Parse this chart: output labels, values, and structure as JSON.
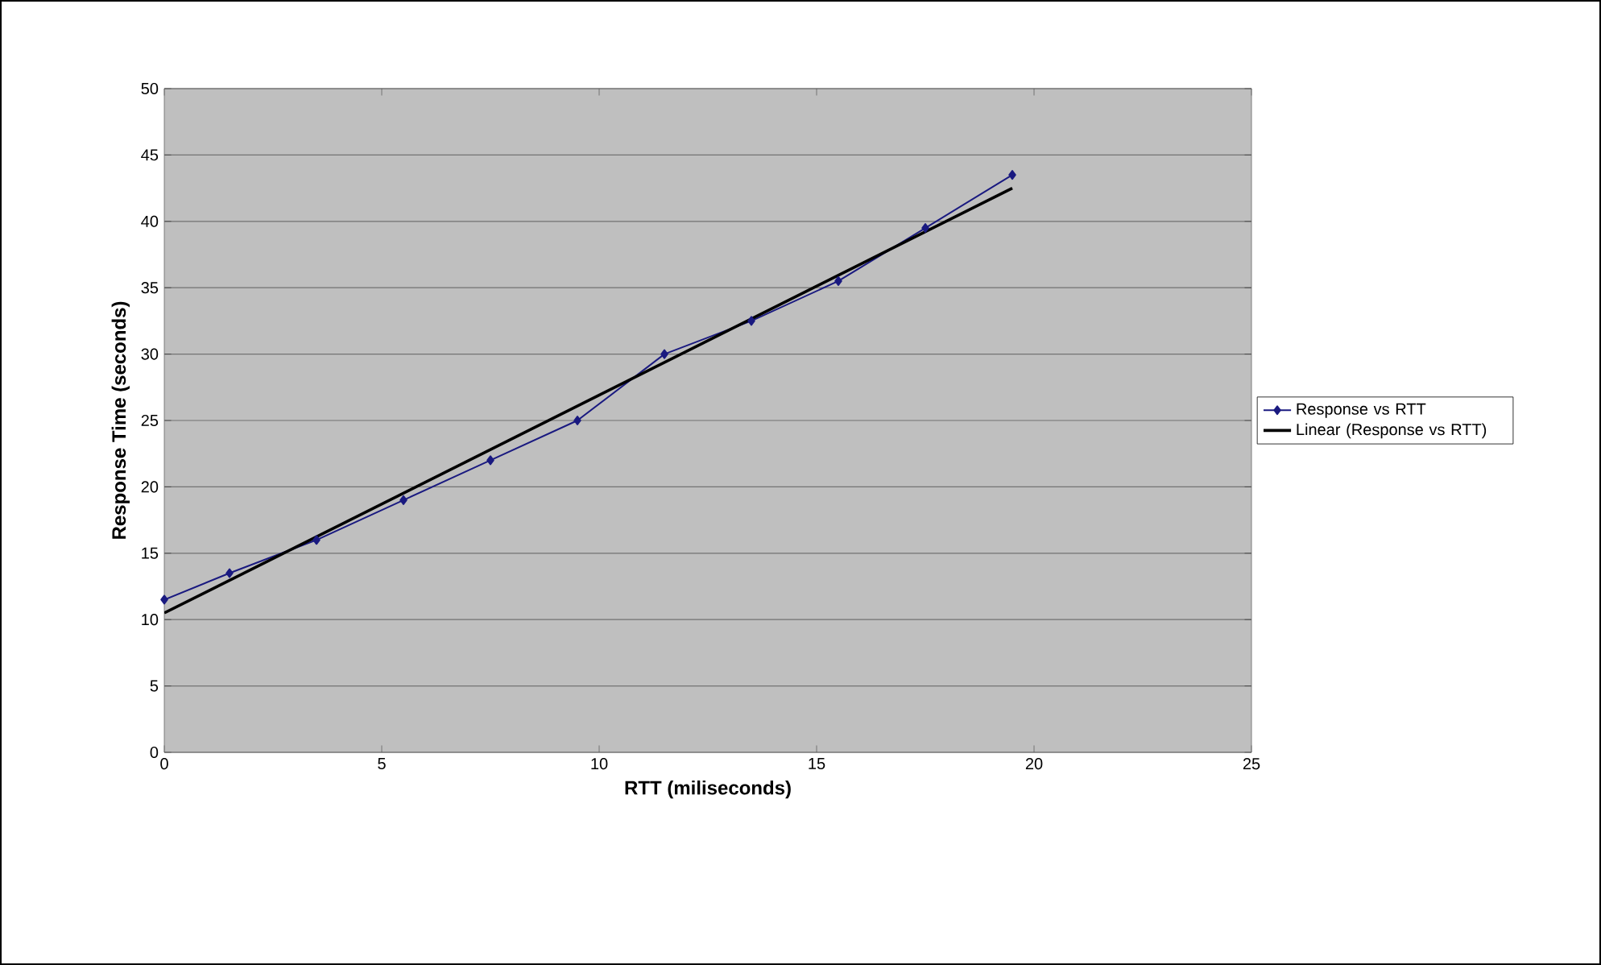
{
  "chart_data": {
    "type": "line",
    "xlabel": "RTT (miliseconds)",
    "ylabel": "Response Time (seconds)",
    "xlim": [
      0,
      25
    ],
    "xticks": [
      0,
      5,
      10,
      15,
      20,
      25
    ],
    "ylim": [
      0,
      50
    ],
    "yticks": [
      0,
      5,
      10,
      15,
      20,
      25,
      30,
      35,
      40,
      45,
      50
    ],
    "grid": "y",
    "legend": "right",
    "series": [
      {
        "name": "Response vs RTT",
        "color": "#1a1a80",
        "marker": "diamond",
        "line_style": "solid",
        "x": [
          0,
          1.5,
          3.5,
          5.5,
          7.5,
          9.5,
          11.5,
          13.5,
          15.5,
          17.5,
          19.5
        ],
        "values": [
          11.5,
          13.5,
          16,
          19,
          22,
          25,
          30,
          32.5,
          35.5,
          39.5,
          43.5
        ]
      },
      {
        "name": "Linear (Response vs RTT)",
        "type": "line",
        "color": "#000000",
        "marker": "none",
        "line_style": "solid",
        "x": [
          0,
          19.5
        ],
        "values": [
          10.5,
          42.5
        ]
      }
    ]
  }
}
